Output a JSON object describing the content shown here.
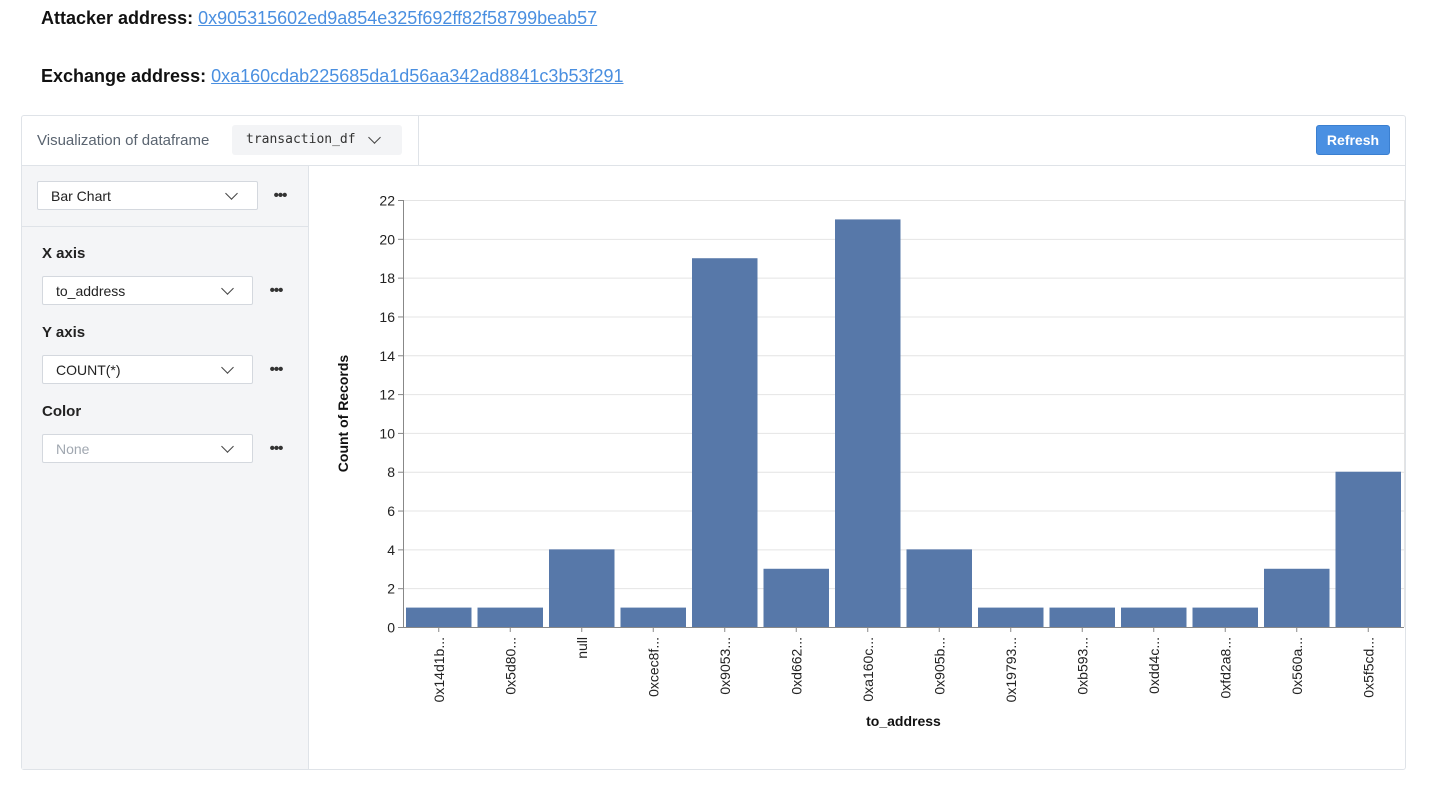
{
  "attacker": {
    "label": "Attacker address:",
    "value": "0x905315602ed9a854e325f692ff82f58799beab57"
  },
  "exchange": {
    "label": "Exchange address:",
    "value": "0xa160cdab225685da1d56aa342ad8841c3b53f291"
  },
  "viz": {
    "title": "Visualization of dataframe",
    "dataframe": "transaction_df",
    "refresh_label": "Refresh"
  },
  "panel": {
    "chart_type": "Bar Chart",
    "x_axis_label": "X axis",
    "x_axis_value": "to_address",
    "y_axis_label": "Y axis",
    "y_axis_value": "COUNT(*)",
    "color_label": "Color",
    "color_placeholder": "None",
    "more_icon": "more-horizontal-icon",
    "chevron_icon": "chevron-down-icon"
  },
  "colors": {
    "bar": "#5778a9",
    "accent": "#4a90e2",
    "link": "#4a8fe0"
  },
  "chart_data": {
    "type": "bar",
    "categories": [
      "0x14d1b...",
      "0x5d80...",
      "null",
      "0xcec8f...",
      "0x9053...",
      "0xd662...",
      "0xa160c...",
      "0x905b...",
      "0x19793...",
      "0xb593...",
      "0xdd4c...",
      "0xfd2a8...",
      "0x560a...",
      "0x5f5cd..."
    ],
    "values": [
      1,
      1,
      4,
      1,
      19,
      3,
      21,
      4,
      1,
      1,
      1,
      1,
      3,
      8
    ],
    "xlabel": "to_address",
    "ylabel": "Count of Records",
    "ylim": [
      0,
      22
    ],
    "yticks": [
      0,
      2,
      4,
      6,
      8,
      10,
      12,
      14,
      16,
      18,
      20,
      22
    ],
    "grid": true
  }
}
